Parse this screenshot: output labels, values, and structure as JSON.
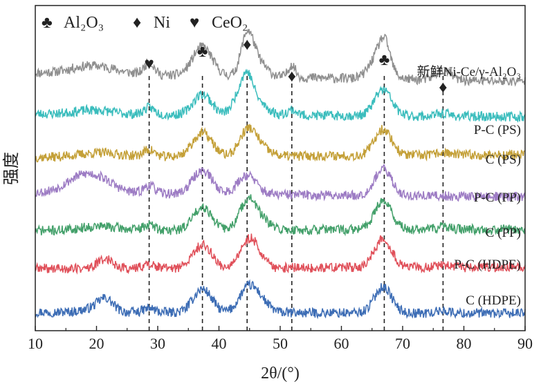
{
  "chart_data": {
    "type": "line",
    "xlabel": "2θ/(°)",
    "ylabel": "强度",
    "xlim": [
      10,
      90
    ],
    "x_ticks": [
      "10",
      "20",
      "30",
      "40",
      "50",
      "60",
      "70",
      "80",
      "90"
    ],
    "legend": [
      {
        "symbol": "♣",
        "label": "Al₂O₃",
        "phase": "Al2O3"
      },
      {
        "symbol": "♦",
        "label": "Ni",
        "phase": "Ni"
      },
      {
        "symbol": "♥",
        "label": "CeO₂",
        "phase": "CeO2"
      }
    ],
    "reference_lines": [
      28.6,
      37.3,
      44.6,
      51.9,
      67.0,
      76.6
    ],
    "peak_markers": [
      {
        "x": 28.6,
        "symbol": "♥"
      },
      {
        "x": 37.3,
        "symbol": "♣"
      },
      {
        "x": 44.6,
        "symbol": "♦"
      },
      {
        "x": 51.9,
        "symbol": "♦"
      },
      {
        "x": 67.0,
        "symbol": "♣"
      },
      {
        "x": 76.6,
        "symbol": "♦"
      }
    ],
    "series": [
      {
        "name": "新鲜Ni-Ce/γ-Al₂O₃",
        "color": "#8f8f8f",
        "offset": 6,
        "start": 0.86,
        "end": 0.55,
        "seed": 11,
        "peaks": [
          [
            19.5,
            0.3,
            3.5
          ],
          [
            28.6,
            0.45,
            0.8
          ],
          [
            37.3,
            1.05,
            1.6
          ],
          [
            44.6,
            1.35,
            1.0
          ],
          [
            46.2,
            0.55,
            1.5
          ],
          [
            51.9,
            0.45,
            0.6
          ],
          [
            66.3,
            0.95,
            1.5
          ],
          [
            67.1,
            0.65,
            0.8
          ],
          [
            76.6,
            0.35,
            1.2
          ]
        ]
      },
      {
        "name": "P-C (PS)",
        "color": "#3bbdbd",
        "offset": 5,
        "start": 0.7,
        "end": 0.6,
        "seed": 23,
        "peaks": [
          [
            19.5,
            0.15,
            3.0
          ],
          [
            28.6,
            0.25,
            0.9
          ],
          [
            37.3,
            0.75,
            1.5
          ],
          [
            43.0,
            0.5,
            1.0
          ],
          [
            44.6,
            1.25,
            1.0
          ],
          [
            46.5,
            0.4,
            1.5
          ],
          [
            51.9,
            0.2,
            0.8
          ],
          [
            66.8,
            0.95,
            1.4
          ],
          [
            76.6,
            0.1,
            1.0
          ]
        ]
      },
      {
        "name": "C (PS)",
        "color": "#c4a038",
        "offset": 4,
        "start": 0.45,
        "end": 0.55,
        "seed": 37,
        "peaks": [
          [
            20.5,
            0.15,
            3.5
          ],
          [
            28.6,
            0.25,
            0.9
          ],
          [
            37.3,
            0.85,
            1.6
          ],
          [
            44.6,
            0.85,
            1.3
          ],
          [
            46.5,
            0.35,
            1.5
          ],
          [
            66.8,
            0.95,
            1.4
          ],
          [
            76.6,
            0.1,
            1.0
          ]
        ]
      },
      {
        "name": "P-C (PP)",
        "color": "#9d7cc4",
        "offset": 3,
        "start": 0.5,
        "end": 0.35,
        "seed": 53,
        "peaks": [
          [
            17.0,
            0.45,
            2.5
          ],
          [
            20.5,
            0.45,
            2.5
          ],
          [
            28.6,
            0.3,
            0.9
          ],
          [
            37.3,
            0.85,
            1.6
          ],
          [
            44.6,
            0.7,
            1.5
          ],
          [
            66.8,
            0.95,
            1.4
          ]
        ]
      },
      {
        "name": "C (PP)",
        "color": "#43a06a",
        "offset": 2,
        "start": 0.45,
        "end": 0.5,
        "seed": 71,
        "peaks": [
          [
            20.5,
            0.15,
            3.0
          ],
          [
            28.6,
            0.2,
            0.9
          ],
          [
            37.3,
            0.85,
            1.5
          ],
          [
            44.6,
            0.95,
            1.3
          ],
          [
            46.5,
            0.4,
            1.5
          ],
          [
            66.8,
            1.05,
            1.4
          ],
          [
            76.6,
            0.1,
            1.0
          ]
        ]
      },
      {
        "name": "P-C (HDPE)",
        "color": "#e0505a",
        "offset": 1,
        "start": 0.4,
        "end": 0.45,
        "seed": 89,
        "peaks": [
          [
            21.5,
            0.35,
            1.2
          ],
          [
            28.6,
            0.15,
            0.9
          ],
          [
            37.3,
            0.85,
            1.5
          ],
          [
            44.6,
            0.75,
            1.3
          ],
          [
            46.0,
            0.5,
            1.3
          ],
          [
            66.8,
            1.05,
            1.4
          ],
          [
            76.6,
            0.1,
            1.0
          ]
        ]
      },
      {
        "name": "C (HDPE)",
        "color": "#3d6db5",
        "offset": 0,
        "start": 0.15,
        "end": 0.1,
        "seed": 97,
        "peaks": [
          [
            21.5,
            0.4,
            1.2
          ],
          [
            20.0,
            0.15,
            2.0
          ],
          [
            28.6,
            0.15,
            0.9
          ],
          [
            37.3,
            0.85,
            1.5
          ],
          [
            44.6,
            0.75,
            1.4
          ],
          [
            46.5,
            0.45,
            1.5
          ],
          [
            66.8,
            0.95,
            1.4
          ],
          [
            76.6,
            0.1,
            1.0
          ]
        ]
      }
    ]
  }
}
